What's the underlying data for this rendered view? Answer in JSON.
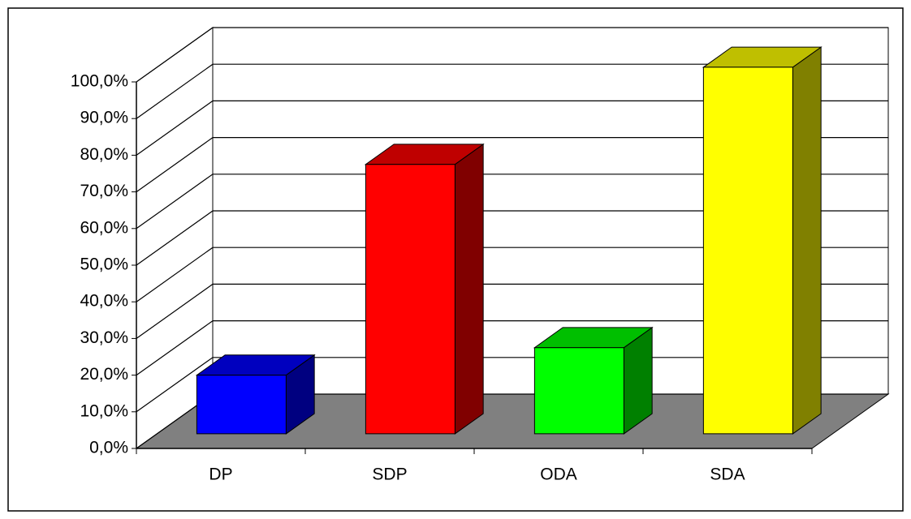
{
  "chart_data": {
    "type": "bar3d",
    "categories": [
      "DP",
      "SDP",
      "ODA",
      "SDA"
    ],
    "values": [
      16,
      73.5,
      23.5,
      100
    ],
    "colors": [
      "#0000ff",
      "#ff0000",
      "#00ff00",
      "#ffff00"
    ],
    "ylim": [
      0,
      100
    ],
    "yticks": [
      {
        "value": 0,
        "label": "0,0%"
      },
      {
        "value": 10,
        "label": "10,0%"
      },
      {
        "value": 20,
        "label": "20,0%"
      },
      {
        "value": 30,
        "label": "30,0%"
      },
      {
        "value": 40,
        "label": "40,0%"
      },
      {
        "value": 50,
        "label": "50,0%"
      },
      {
        "value": 60,
        "label": "60,0%"
      },
      {
        "value": 70,
        "label": "70,0%"
      },
      {
        "value": 80,
        "label": "80,0%"
      },
      {
        "value": 90,
        "label": "90,0%"
      },
      {
        "value": 100,
        "label": "100,0%"
      }
    ],
    "grid": true
  }
}
